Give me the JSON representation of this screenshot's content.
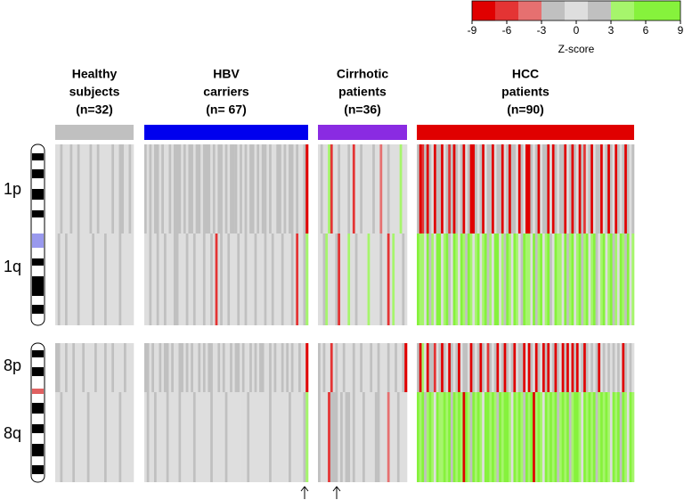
{
  "chart_data": {
    "type": "heatmap",
    "groups": [
      {
        "label": [
          "Healthy",
          "subjects",
          "(n=32)"
        ],
        "color": "#c0c0c0"
      },
      {
        "label": [
          "HBV",
          "carriers",
          "(n= 67)"
        ],
        "color": "#0000ee"
      },
      {
        "label": [
          "Cirrhotic",
          "patients",
          "(n=36)"
        ],
        "color": "#8a2be2"
      },
      {
        "label": [
          "HCC",
          "patients",
          "(n=90)"
        ],
        "color": "#e00000"
      }
    ],
    "rows": [
      {
        "name": "1p",
        "values": [
          [
            0,
            0,
            2,
            0,
            0,
            0,
            2,
            0,
            0,
            2,
            0,
            0,
            0,
            0,
            2,
            0,
            0,
            2,
            0,
            0,
            0,
            0,
            0,
            2,
            0,
            0,
            2,
            2,
            0,
            0,
            2,
            0
          ],
          [
            2,
            0,
            2,
            0,
            2,
            2,
            0,
            2,
            0,
            0,
            2,
            0,
            2,
            2,
            2,
            0,
            2,
            0,
            2,
            2,
            0,
            2,
            2,
            0,
            2,
            2,
            2,
            0,
            2,
            0,
            2,
            2,
            0,
            2,
            0,
            2,
            2,
            2,
            0,
            2,
            0,
            2,
            0,
            2,
            2,
            0,
            2,
            0,
            2,
            2,
            0,
            2,
            0,
            0,
            2,
            2,
            0,
            2,
            0,
            2,
            2,
            0,
            2,
            0,
            0,
            2,
            -8
          ],
          [
            0,
            2,
            0,
            0,
            4,
            -6,
            0,
            0,
            2,
            0,
            0,
            0,
            2,
            0,
            -6,
            0,
            0,
            2,
            0,
            0,
            0,
            0,
            2,
            0,
            0,
            -4,
            0,
            0,
            2,
            0,
            0,
            0,
            0,
            4,
            0,
            0
          ],
          [
            2,
            -8,
            -6,
            2,
            -8,
            2,
            0,
            -8,
            2,
            2,
            -8,
            0,
            2,
            -6,
            2,
            -8,
            2,
            0,
            2,
            -8,
            0,
            2,
            -8,
            -8,
            2,
            0,
            2,
            -8,
            0,
            2,
            2,
            -8,
            0,
            2,
            2,
            -8,
            0,
            2,
            -8,
            2,
            2,
            0,
            -8,
            2,
            0,
            -8,
            -8,
            2,
            0,
            2,
            -8,
            0,
            2,
            2,
            -8,
            0,
            -8,
            2,
            0,
            2,
            2,
            -8,
            0,
            2,
            -8,
            2,
            0,
            -8,
            2,
            -6,
            0,
            2,
            -8,
            0,
            2,
            2,
            -8,
            0,
            2,
            -8,
            2,
            0,
            -8,
            2,
            0,
            2,
            -8,
            2,
            0,
            2
          ]
        ]
      },
      {
        "name": "1q",
        "values": [
          [
            0,
            2,
            0,
            0,
            2,
            0,
            0,
            0,
            0,
            2,
            0,
            0,
            0,
            0,
            0,
            2,
            0,
            0,
            0,
            0,
            2,
            0,
            0,
            0,
            0,
            0,
            2,
            0,
            0,
            0,
            0,
            0
          ],
          [
            0,
            0,
            2,
            0,
            0,
            2,
            0,
            0,
            2,
            0,
            0,
            0,
            2,
            2,
            0,
            0,
            0,
            2,
            0,
            0,
            2,
            0,
            0,
            0,
            2,
            0,
            0,
            2,
            0,
            -6,
            0,
            2,
            0,
            0,
            2,
            0,
            0,
            0,
            2,
            0,
            0,
            2,
            0,
            0,
            0,
            2,
            0,
            0,
            0,
            2,
            0,
            0,
            2,
            0,
            0,
            0,
            2,
            0,
            0,
            0,
            2,
            0,
            -6,
            0,
            0,
            2,
            4
          ],
          [
            0,
            0,
            2,
            4,
            0,
            0,
            0,
            2,
            -6,
            0,
            0,
            0,
            4,
            0,
            0,
            2,
            0,
            0,
            0,
            0,
            4,
            0,
            0,
            0,
            0,
            2,
            0,
            0,
            -6,
            0,
            4,
            0,
            0,
            0,
            2,
            0
          ],
          [
            7,
            4,
            4,
            0,
            7,
            2,
            4,
            0,
            7,
            7,
            0,
            4,
            7,
            2,
            0,
            7,
            4,
            0,
            7,
            4,
            2,
            7,
            4,
            0,
            4,
            7,
            0,
            4,
            7,
            2,
            4,
            0,
            7,
            7,
            0,
            4,
            2,
            7,
            4,
            0,
            7,
            4,
            0,
            2,
            7,
            4,
            4,
            0,
            7,
            2,
            4,
            7,
            0,
            4,
            7,
            2,
            0,
            7,
            4,
            4,
            0,
            7,
            2,
            4,
            7,
            0,
            4,
            7,
            2,
            4,
            7,
            0,
            4,
            7,
            2,
            0,
            4,
            7,
            0,
            4,
            7,
            2,
            4,
            0,
            7,
            4,
            2,
            7,
            0,
            4
          ]
        ]
      },
      {
        "name": "8p",
        "values": [
          [
            2,
            2,
            0,
            0,
            2,
            0,
            0,
            2,
            0,
            0,
            0,
            2,
            0,
            0,
            0,
            0,
            2,
            0,
            0,
            0,
            2,
            0,
            0,
            2,
            0,
            0,
            0,
            0,
            2,
            0,
            0,
            0
          ],
          [
            2,
            2,
            0,
            2,
            0,
            0,
            2,
            0,
            2,
            2,
            0,
            2,
            0,
            0,
            2,
            2,
            0,
            2,
            0,
            2,
            0,
            0,
            2,
            0,
            2,
            0,
            2,
            2,
            0,
            0,
            2,
            0,
            2,
            0,
            0,
            2,
            0,
            2,
            2,
            0,
            2,
            0,
            0,
            2,
            0,
            2,
            0,
            2,
            2,
            0,
            0,
            2,
            0,
            2,
            0,
            0,
            2,
            0,
            2,
            0,
            2,
            0,
            0,
            2,
            0,
            0,
            -8
          ],
          [
            2,
            0,
            2,
            0,
            0,
            -6,
            0,
            2,
            0,
            0,
            2,
            0,
            0,
            0,
            2,
            0,
            0,
            2,
            0,
            0,
            0,
            2,
            0,
            0,
            2,
            0,
            0,
            0,
            2,
            0,
            0,
            2,
            0,
            0,
            2,
            -8
          ],
          [
            2,
            -8,
            4,
            0,
            -8,
            2,
            2,
            -6,
            0,
            2,
            -8,
            2,
            0,
            -8,
            2,
            0,
            2,
            -8,
            0,
            2,
            2,
            0,
            -8,
            2,
            0,
            2,
            -8,
            2,
            0,
            -6,
            2,
            0,
            2,
            -8,
            0,
            2,
            -8,
            2,
            0,
            2,
            -8,
            0,
            2,
            2,
            -8,
            0,
            -8,
            2,
            0,
            -8,
            2,
            0,
            -8,
            2,
            -8,
            0,
            2,
            -8,
            2,
            0,
            -8,
            2,
            -8,
            0,
            -8,
            2,
            -8,
            0,
            2,
            -8,
            2,
            0,
            2,
            0,
            2,
            -8,
            0,
            2,
            0,
            2,
            0,
            2,
            0,
            2,
            0,
            -8,
            2,
            0,
            2,
            0
          ]
        ]
      },
      {
        "name": "8q",
        "values": [
          [
            0,
            0,
            2,
            0,
            0,
            0,
            0,
            2,
            0,
            0,
            0,
            0,
            0,
            2,
            0,
            0,
            0,
            0,
            0,
            0,
            2,
            0,
            0,
            0,
            0,
            0,
            2,
            0,
            0,
            0,
            0,
            0
          ],
          [
            0,
            2,
            0,
            0,
            2,
            0,
            0,
            0,
            0,
            2,
            0,
            0,
            0,
            0,
            2,
            0,
            0,
            0,
            0,
            0,
            2,
            0,
            0,
            0,
            0,
            0,
            0,
            2,
            0,
            0,
            0,
            0,
            0,
            2,
            0,
            0,
            0,
            0,
            0,
            0,
            0,
            0,
            2,
            0,
            0,
            0,
            0,
            0,
            0,
            0,
            0,
            2,
            0,
            0,
            0,
            0,
            0,
            0,
            0,
            2,
            0,
            0,
            0,
            0,
            0,
            2,
            4
          ],
          [
            2,
            0,
            0,
            0,
            -6,
            2,
            2,
            2,
            0,
            2,
            0,
            2,
            2,
            0,
            2,
            0,
            0,
            0,
            2,
            0,
            0,
            0,
            0,
            2,
            2,
            0,
            0,
            0,
            -4,
            0,
            0,
            0,
            2,
            0,
            0,
            0
          ],
          [
            7,
            4,
            7,
            2,
            4,
            7,
            4,
            0,
            7,
            4,
            4,
            7,
            4,
            7,
            2,
            7,
            4,
            7,
            4,
            -8,
            7,
            4,
            2,
            7,
            4,
            7,
            4,
            0,
            7,
            7,
            4,
            7,
            4,
            2,
            7,
            4,
            7,
            7,
            4,
            0,
            7,
            4,
            7,
            4,
            2,
            7,
            4,
            7,
            -8,
            4,
            7,
            4,
            0,
            7,
            4,
            7,
            4,
            7,
            2,
            4,
            7,
            4,
            7,
            2,
            4,
            7,
            7,
            4,
            0,
            7,
            4,
            7,
            4,
            7,
            2,
            4,
            7,
            4,
            7,
            4,
            0,
            7,
            4,
            7,
            2,
            7,
            4,
            0,
            7,
            4
          ]
        ]
      }
    ],
    "colorbar": {
      "label": "Z-score",
      "xlim": [
        -9,
        9
      ],
      "bins": [
        -9,
        -7,
        -5,
        -3,
        -1,
        1,
        3,
        5,
        9
      ],
      "colors": [
        "#e00000",
        "#e43434",
        "#e67070",
        "#c0c0c0",
        "#dedede",
        "#c0c0c0",
        "#a6f56c",
        "#86f23c"
      ],
      "ticks": [
        -9,
        -6,
        -3,
        0,
        3,
        6,
        9
      ]
    }
  }
}
